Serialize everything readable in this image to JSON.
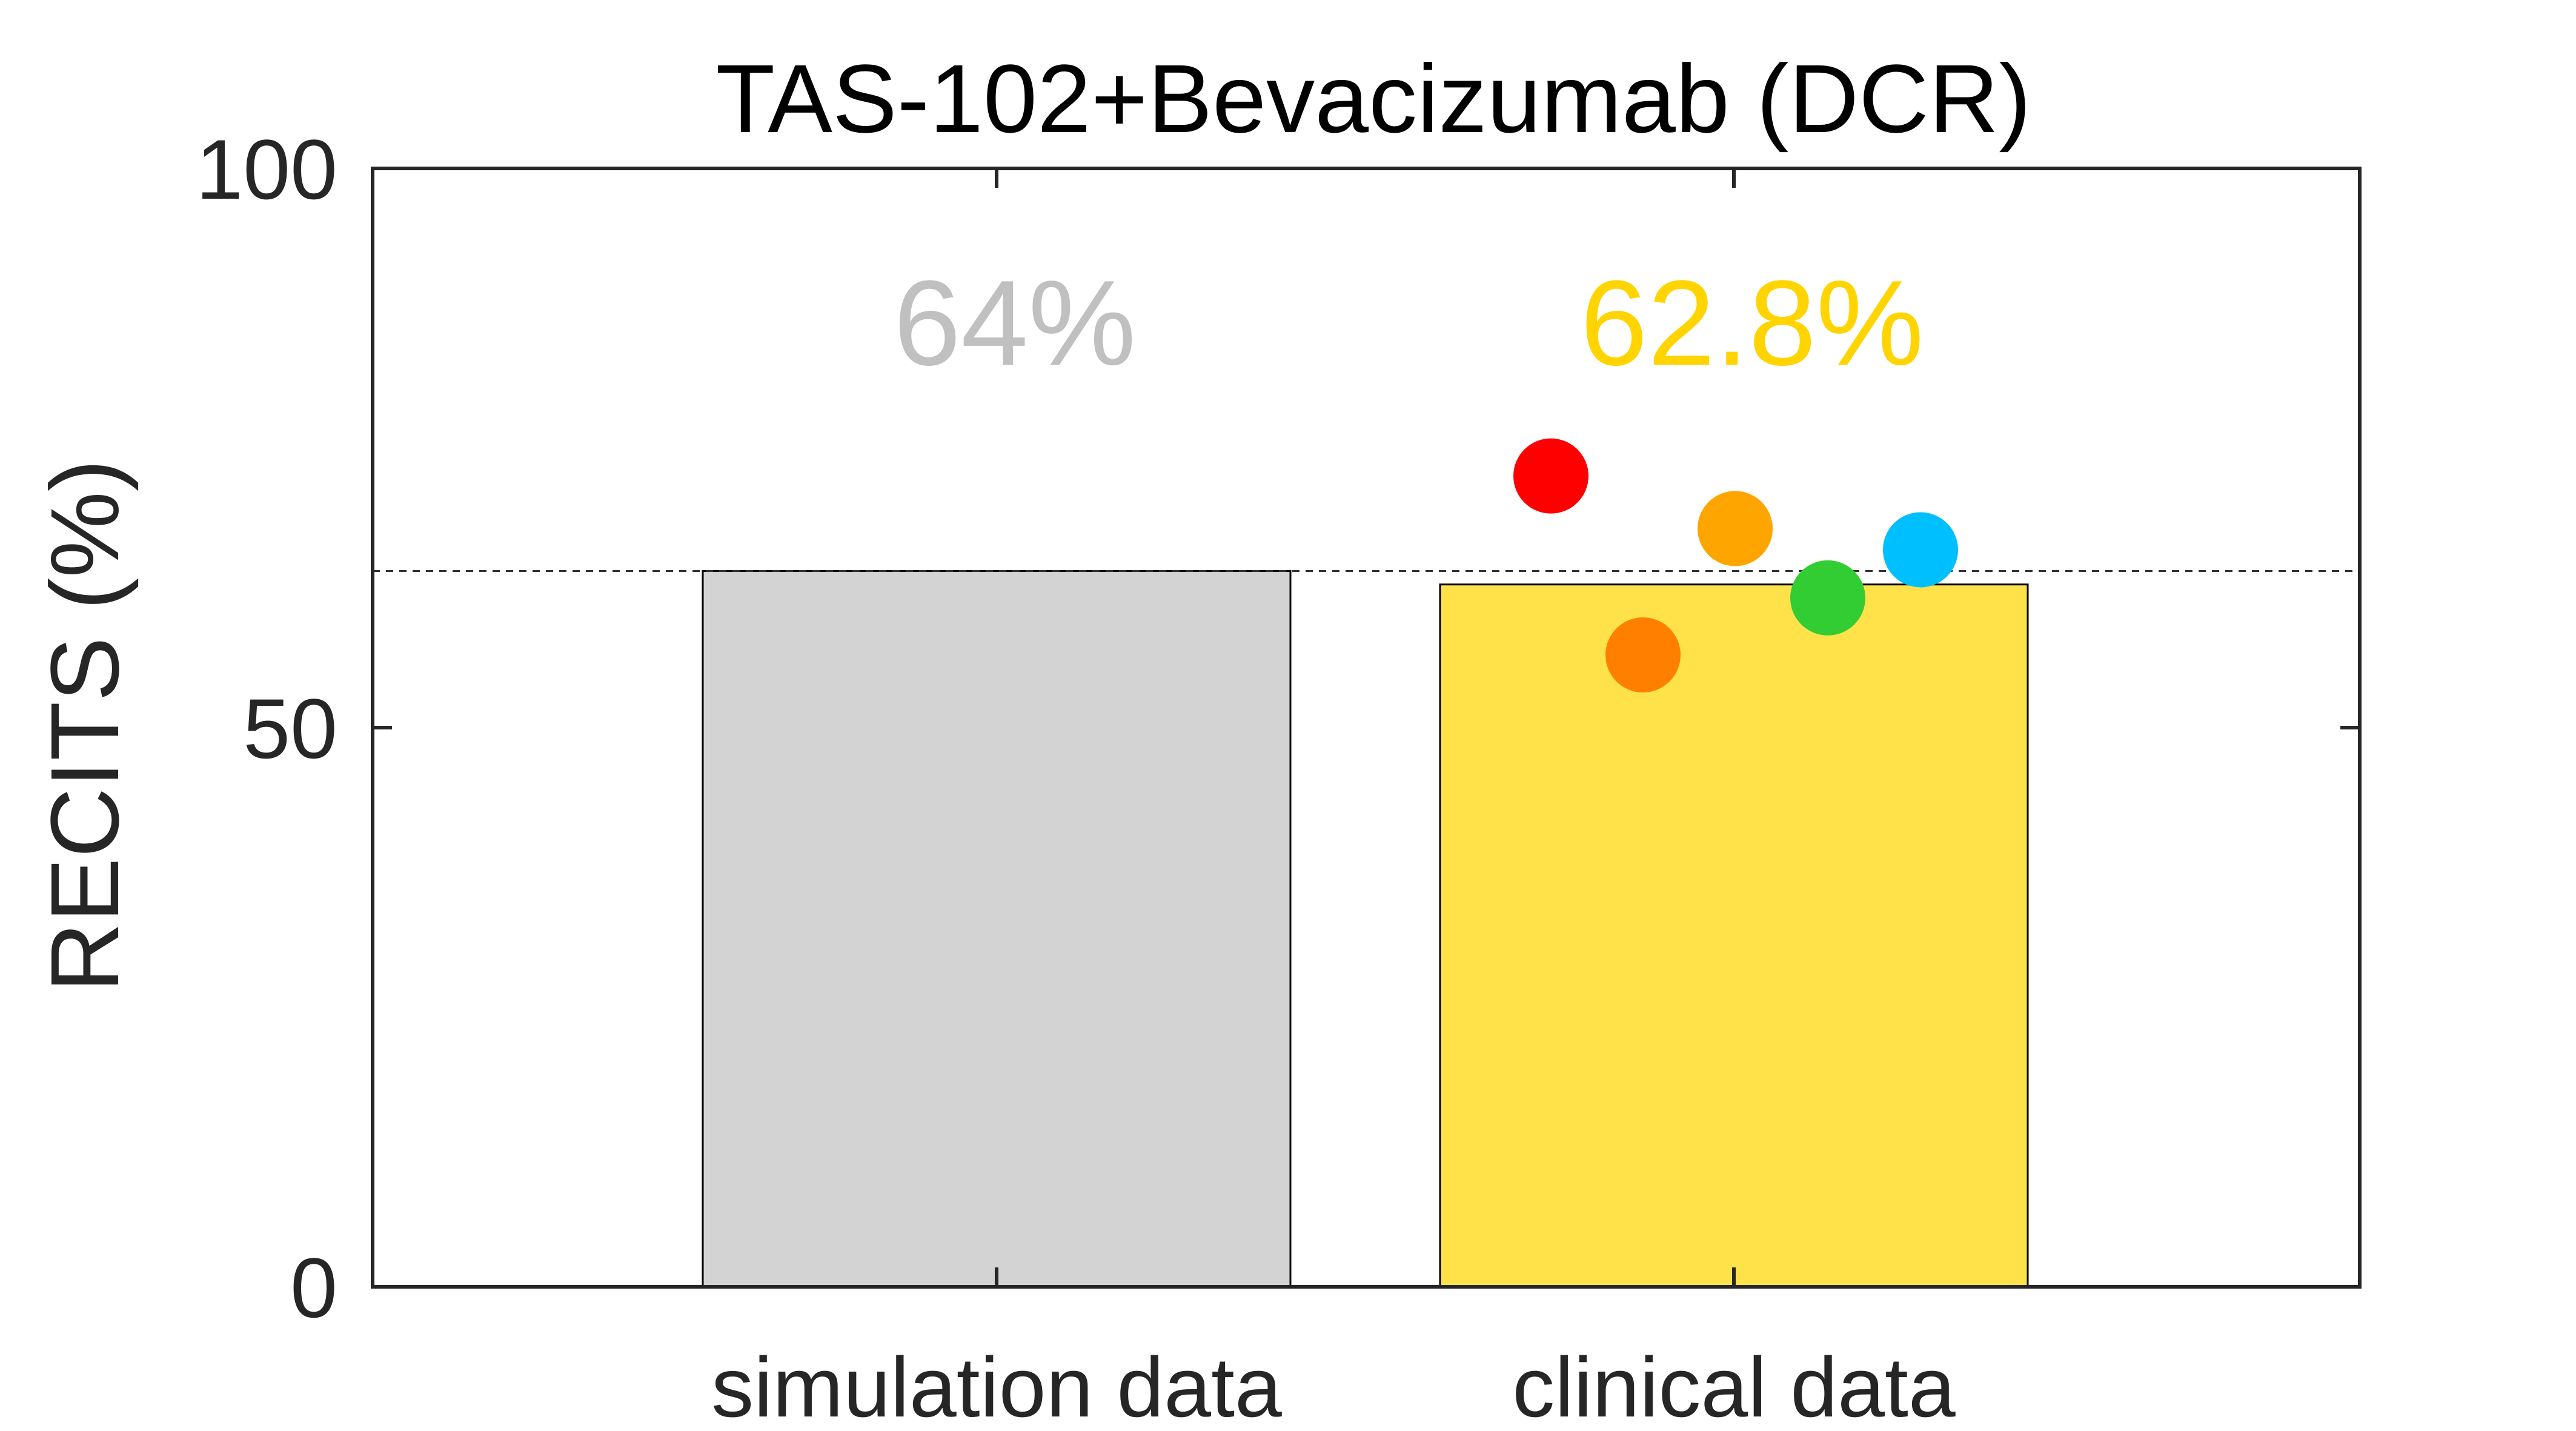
{
  "chart_data": {
    "type": "bar",
    "title": "TAS-102+Bevacizumab (DCR)",
    "xlabel": "",
    "ylabel": "RECITS (%)",
    "ylim": [
      0,
      100
    ],
    "yticks": [
      0,
      50,
      100
    ],
    "grid": false,
    "categories": [
      "simulation data",
      "clinical data"
    ],
    "values": [
      64,
      62.8
    ],
    "value_labels": [
      "64%",
      "62.8%"
    ],
    "bar_colors": [
      "#d3d3d3",
      "#ffe24a"
    ],
    "label_colors": [
      "#c0c0c0",
      "#ffd400"
    ],
    "reference_line": {
      "y": 64,
      "style": "dashed"
    },
    "points": [
      {
        "category": "clinical data",
        "y": 72.5,
        "color": "#ff0000"
      },
      {
        "category": "clinical data",
        "y": 56.5,
        "color": "#ff8000"
      },
      {
        "category": "clinical data",
        "y": 67.8,
        "color": "#ffa500"
      },
      {
        "category": "clinical data",
        "y": 61.6,
        "color": "#32cd32"
      },
      {
        "category": "clinical data",
        "y": 65.9,
        "color": "#00bfff"
      }
    ]
  }
}
